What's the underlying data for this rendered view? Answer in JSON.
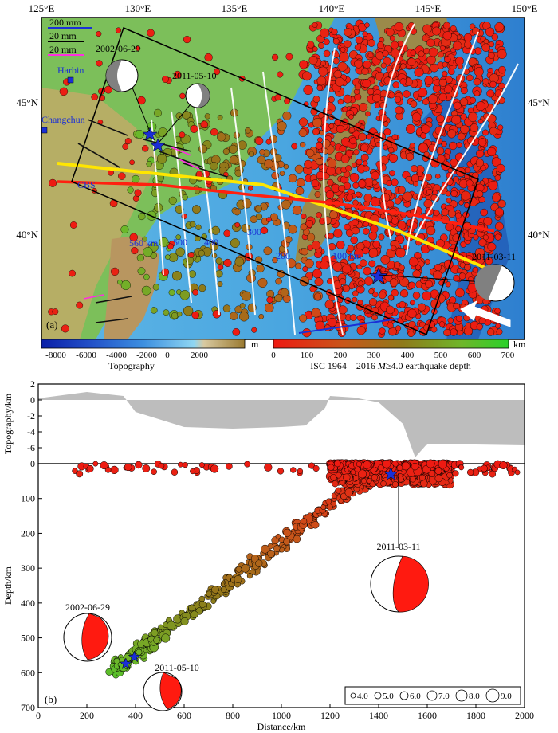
{
  "map": {
    "panel_label": "(a)",
    "lon_ticks": [
      "125°E",
      "130°E",
      "135°E",
      "140°E",
      "145°E",
      "150°E"
    ],
    "lat_ticks": [
      "45°N",
      "40°N"
    ],
    "scale_arrows": [
      "200 mm",
      "20 mm",
      "20 mm"
    ],
    "cities": [
      {
        "name": "Harbin"
      },
      {
        "name": "Changchun"
      }
    ],
    "cbs_label": "CBS",
    "depth_contours": [
      "560 km",
      "500",
      "400",
      "300",
      "200",
      "100 km"
    ],
    "events": [
      "2002-06-29",
      "2011-05-10",
      "2011-03-11"
    ]
  },
  "colorbars": {
    "topo": {
      "ticks": [
        "-8000",
        "-6000",
        "-4000",
        "-2000",
        "0",
        "2000"
      ],
      "unit": "m",
      "label": "Topography"
    },
    "depth": {
      "ticks": [
        "0",
        "100",
        "200",
        "300",
        "400",
        "500",
        "600",
        "700"
      ],
      "unit": "km",
      "label_prefix": "ISC 1964—2016 ",
      "label_m": "M",
      "label_suffix": "≥4.0 earthquake depth"
    }
  },
  "profile": {
    "panel_label": "(b)",
    "topo_ylabel": "Topography/km",
    "topo_yticks": [
      "2",
      "0",
      "-2",
      "-4",
      "-6",
      "-8"
    ],
    "depth_ylabel": "Depth/km",
    "depth_yticks": [
      "0",
      "100",
      "200",
      "300",
      "400",
      "500",
      "600",
      "700"
    ],
    "xlabel": "Distance/km",
    "xticks": [
      "0",
      "200",
      "400",
      "600",
      "800",
      "1000",
      "1200",
      "1400",
      "1600",
      "1800",
      "2000"
    ],
    "events": [
      {
        "label": "2002-06-29",
        "distance_km": 360,
        "depth_km": 575
      },
      {
        "label": "2011-05-10",
        "distance_km": 395,
        "depth_km": 555
      },
      {
        "label": "2011-03-11",
        "distance_km": 1450,
        "depth_km": 30
      }
    ],
    "magnitude_legend": [
      "4.0",
      "5.0",
      "6.0",
      "7.0",
      "8.0",
      "9.0"
    ]
  },
  "chart_data": {
    "type": "scatter",
    "xlabel": "Distance/km",
    "ylabel": "Depth/km",
    "xlim": [
      0,
      2000
    ],
    "ylim": [
      700,
      0
    ],
    "topography_profile_km": {
      "distance_km": [
        0,
        200,
        350,
        400,
        600,
        800,
        1000,
        1100,
        1180,
        1200,
        1300,
        1400,
        1500,
        1550,
        1600,
        1800,
        2000
      ],
      "elevation_km": [
        0.2,
        1.0,
        0.5,
        -1.5,
        -3.4,
        -3.6,
        -3.4,
        -3.2,
        -1.0,
        0.5,
        0.3,
        -0.3,
        -3.0,
        -7.2,
        -5.5,
        -5.5,
        -5.6
      ]
    },
    "slab_points": {
      "distance_km": [
        300,
        350,
        400,
        450,
        500,
        600,
        700,
        800,
        900,
        1000,
        1100,
        1200,
        1300,
        1400
      ],
      "depth_km": [
        590,
        575,
        550,
        520,
        490,
        440,
        390,
        340,
        280,
        230,
        170,
        120,
        70,
        40
      ]
    },
    "shallow_band": {
      "distance_km": [
        1200,
        1700
      ],
      "depth_km": [
        0,
        60
      ]
    }
  }
}
